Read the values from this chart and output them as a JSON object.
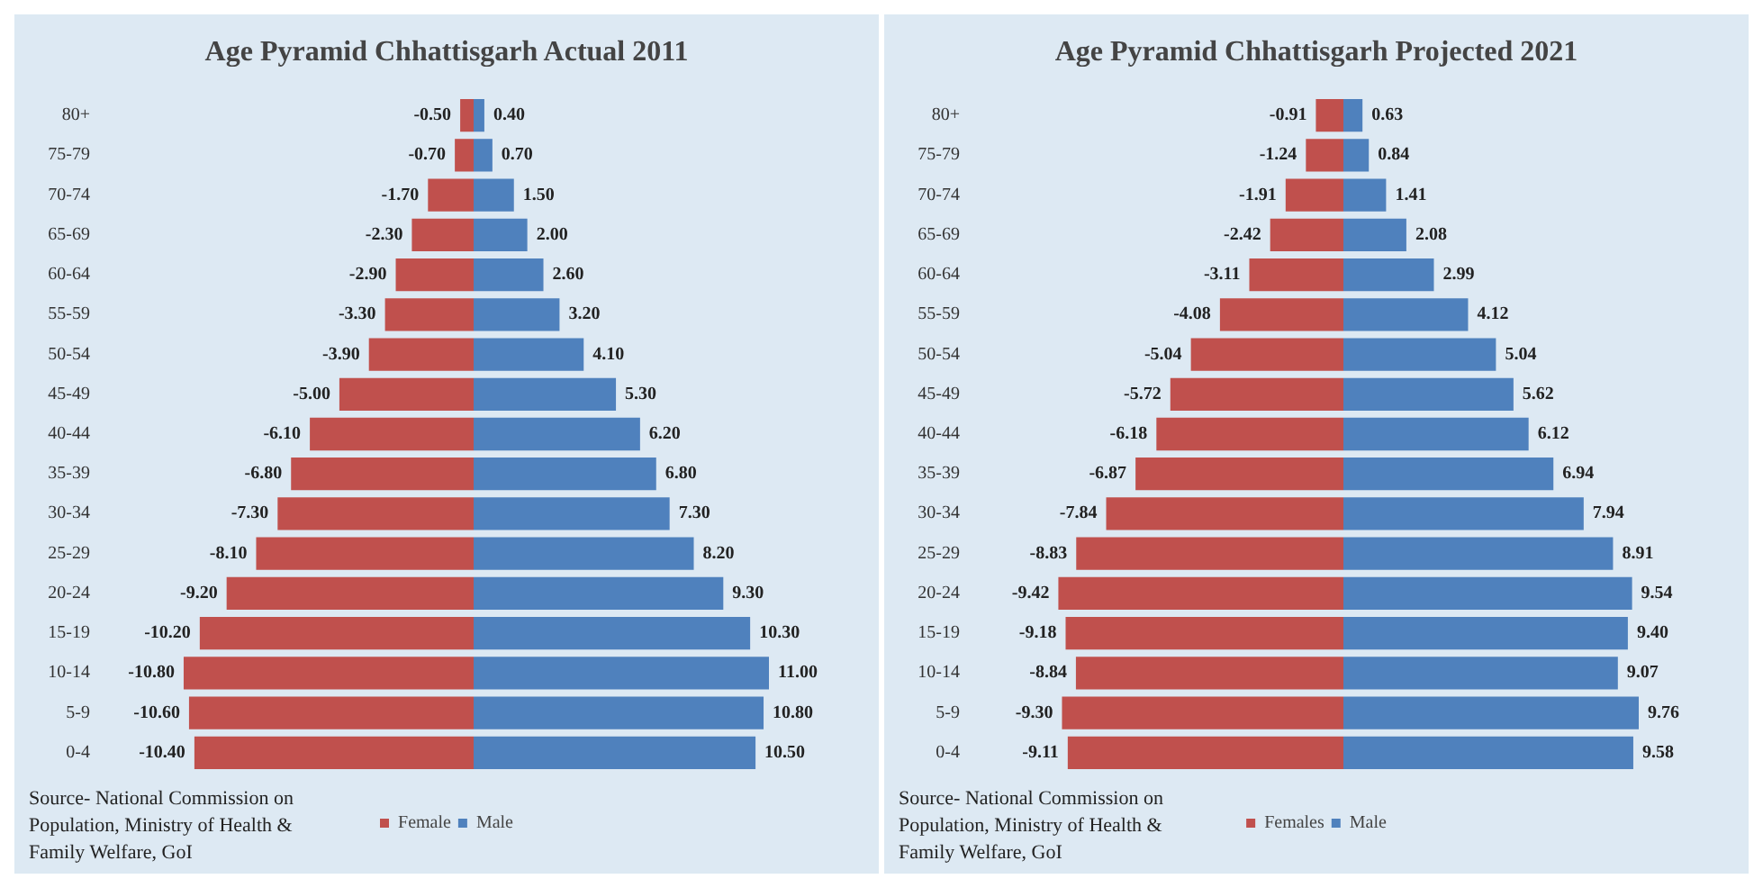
{
  "chart_data": [
    {
      "type": "bar",
      "orientation": "horizontal",
      "stacked": true,
      "title": "Age Pyramid Chhattisgarh Actual 2011",
      "categories": [
        "80+",
        "75-79",
        "70-74",
        "65-69",
        "60-64",
        "55-59",
        "50-54",
        "45-49",
        "40-44",
        "35-39",
        "30-34",
        "25-29",
        "20-24",
        "15-19",
        "10-14",
        "5-9",
        "0-4"
      ],
      "series": [
        {
          "name": "Female",
          "color": "#c0504d",
          "values": [
            -0.5,
            -0.7,
            -1.7,
            -2.3,
            -2.9,
            -3.3,
            -3.9,
            -5.0,
            -6.1,
            -6.8,
            -7.3,
            -8.1,
            -9.2,
            -10.2,
            -10.8,
            -10.6,
            -10.4
          ],
          "value_labels": [
            "-0.50",
            "-0.70",
            "-1.70",
            "-2.30",
            "-2.90",
            "-3.30",
            "-3.90",
            "-5.00",
            "-6.10",
            "-6.80",
            "-7.30",
            "-8.10",
            "-9.20",
            "-10.20",
            "-10.80",
            "-10.60",
            "-10.40"
          ]
        },
        {
          "name": "Male",
          "color": "#4f81bd",
          "values": [
            0.4,
            0.7,
            1.5,
            2.0,
            2.6,
            3.2,
            4.1,
            5.3,
            6.2,
            6.8,
            7.3,
            8.2,
            9.3,
            10.3,
            11.0,
            10.8,
            10.5
          ],
          "value_labels": [
            "0.40",
            "0.70",
            "1.50",
            "2.00",
            "2.60",
            "3.20",
            "4.10",
            "5.30",
            "6.20",
            "6.80",
            "7.30",
            "8.20",
            "9.30",
            "10.30",
            "11.00",
            "10.80",
            "10.50"
          ]
        }
      ],
      "legend": "bottom",
      "tick_labels": "y",
      "grid": false,
      "annotations": [
        "Source- National Commission on Population, Ministry of Health & Family Welfare, GoI"
      ]
    },
    {
      "type": "bar",
      "orientation": "horizontal",
      "stacked": true,
      "title": "Age Pyramid Chhattisgarh Projected 2021",
      "categories": [
        "80+",
        "75-79",
        "70-74",
        "65-69",
        "60-64",
        "55-59",
        "50-54",
        "45-49",
        "40-44",
        "35-39",
        "30-34",
        "25-29",
        "20-24",
        "15-19",
        "10-14",
        "5-9",
        "0-4"
      ],
      "series": [
        {
          "name": "Females",
          "color": "#c0504d",
          "values": [
            -0.91,
            -1.24,
            -1.91,
            -2.42,
            -3.11,
            -4.08,
            -5.04,
            -5.72,
            -6.18,
            -6.87,
            -7.84,
            -8.83,
            -9.42,
            -9.18,
            -8.84,
            -9.3,
            -9.11
          ],
          "value_labels": [
            "-0.91",
            "-1.24",
            "-1.91",
            "-2.42",
            "-3.11",
            "-4.08",
            "-5.04",
            "-5.72",
            "-6.18",
            "-6.87",
            "-7.84",
            "-8.83",
            "-9.42",
            "-9.18",
            "-8.84",
            "-9.30",
            "-9.11"
          ]
        },
        {
          "name": "Male",
          "color": "#4f81bd",
          "values": [
            0.63,
            0.84,
            1.41,
            2.08,
            2.99,
            4.12,
            5.04,
            5.62,
            6.12,
            6.94,
            7.94,
            8.91,
            9.54,
            9.4,
            9.07,
            9.76,
            9.58
          ],
          "value_labels": [
            "0.63",
            "0.84",
            "1.41",
            "2.08",
            "2.99",
            "4.12",
            "5.04",
            "5.62",
            "6.12",
            "6.94",
            "7.94",
            "8.91",
            "9.54",
            "9.40",
            "9.07",
            "9.76",
            "9.58"
          ]
        }
      ],
      "legend": "bottom",
      "tick_labels": "y",
      "grid": false,
      "annotations": [
        "Source- National Commission on Population, Ministry of Health & Family Welfare, GoI"
      ]
    }
  ]
}
